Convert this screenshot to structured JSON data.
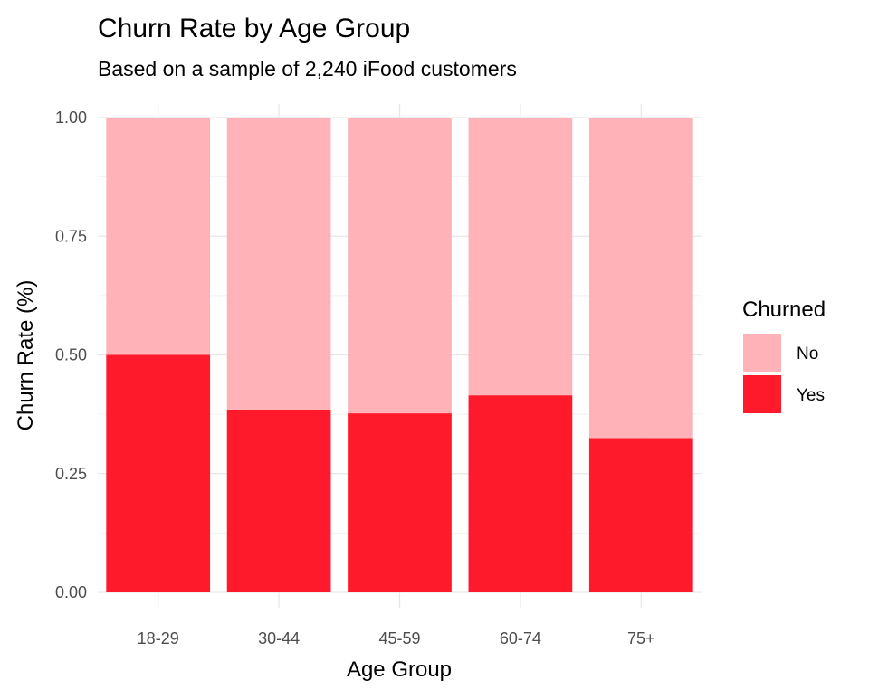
{
  "chart_data": {
    "type": "bar",
    "stacked": true,
    "title": "Churn Rate by Age Group",
    "subtitle": "Based on a sample of 2,240 iFood customers",
    "xlabel": "Age Group",
    "ylabel": "Churn Rate (%)",
    "ylim": [
      0,
      1
    ],
    "yticks": [
      "0.00",
      "0.25",
      "0.50",
      "0.75",
      "1.00"
    ],
    "categories": [
      "18-29",
      "30-44",
      "45-59",
      "60-74",
      "75+"
    ],
    "series": [
      {
        "name": "Yes",
        "color": "#FF1A2B",
        "values": [
          0.5,
          0.385,
          0.377,
          0.415,
          0.325
        ]
      },
      {
        "name": "No",
        "color": "#FFB3B8",
        "values": [
          0.5,
          0.615,
          0.623,
          0.585,
          0.675
        ]
      }
    ],
    "legend": {
      "title": "Churned",
      "position": "right",
      "items": [
        {
          "label": "No",
          "color": "#FFB3B8"
        },
        {
          "label": "Yes",
          "color": "#FF1A2B"
        }
      ]
    },
    "grid": true
  }
}
